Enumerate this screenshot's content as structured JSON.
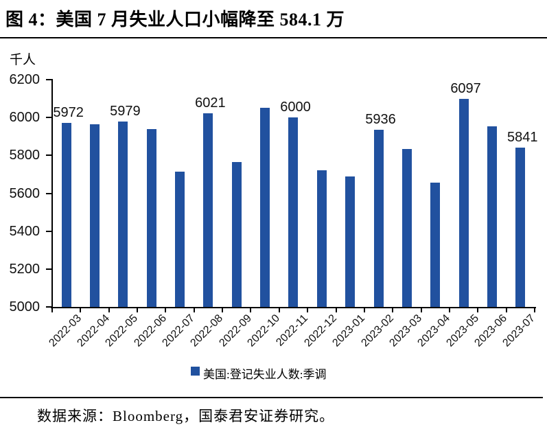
{
  "title": "图 4：美国 7 月失业人口小幅降至 584.1 万",
  "y_axis_unit": "千人",
  "legend": {
    "label": "美国:登记失业人数:季调",
    "swatch_color": "#21519F"
  },
  "source": "数据来源：Bloomberg，国泰君安证券研究。",
  "colors": {
    "bar": "#21519F",
    "axis": "#000000",
    "background": "#FFFFFF",
    "text": "#000000"
  },
  "chart_data": {
    "type": "bar",
    "title": "美国7月失业人口小幅降至584.1万",
    "ylabel": "千人",
    "xlabel": "",
    "categories": [
      "2022-03",
      "2022-04",
      "2022-05",
      "2022-06",
      "2022-07",
      "2022-08",
      "2022-09",
      "2022-10",
      "2022-11",
      "2022-12",
      "2023-01",
      "2023-02",
      "2023-03",
      "2023-04",
      "2023-05",
      "2023-06",
      "2023-07"
    ],
    "values": [
      5972,
      5965,
      5979,
      5940,
      5715,
      6021,
      5765,
      6050,
      6000,
      5720,
      5690,
      5936,
      5835,
      5655,
      6097,
      5955,
      5841
    ],
    "data_labels": [
      "5972",
      "",
      "5979",
      "",
      "",
      "6021",
      "",
      "",
      "6000",
      "",
      "",
      "5936",
      "",
      "",
      "6097",
      "",
      "5841"
    ],
    "series_name": "美国:登记失业人数:季调",
    "ylim": [
      5000,
      6200
    ],
    "y_ticks": [
      5000,
      5200,
      5400,
      5600,
      5800,
      6000,
      6200
    ],
    "grid": false,
    "legend_position": "bottom"
  }
}
